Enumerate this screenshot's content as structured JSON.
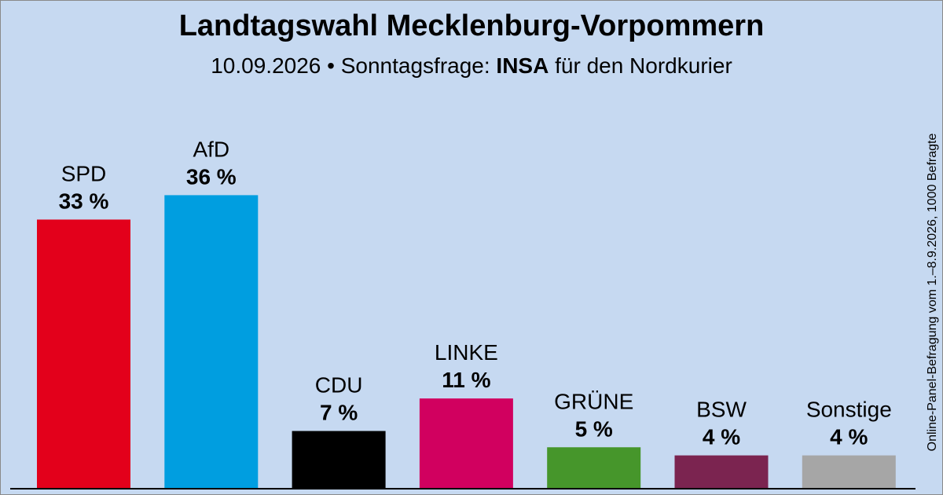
{
  "header": {
    "title": "Landtagswahl Mecklenburg-Vorpommern",
    "subtitle_prefix": "10.09.2026 • Sonntagsfrage: ",
    "subtitle_institute": "INSA",
    "subtitle_suffix": " für den Nordkurier"
  },
  "source_note": "Online-Panel-Befragung vom 1.–8.9.2026, 1000 Befragte",
  "chart_data": {
    "type": "bar",
    "categories": [
      "SPD",
      "AfD",
      "CDU",
      "LINKE",
      "GRÜNE",
      "BSW",
      "Sonstige"
    ],
    "values": [
      33,
      36,
      7,
      11,
      5,
      4,
      4
    ],
    "value_labels": [
      "33 %",
      "36 %",
      "7 %",
      "11 %",
      "5 %",
      "4 %",
      "4 %"
    ],
    "colors": [
      "#e3001b",
      "#009ee0",
      "#000000",
      "#d1005f",
      "#46962b",
      "#7b2450",
      "#a6a6a6"
    ],
    "title": "Landtagswahl Mecklenburg-Vorpommern",
    "xlabel": "",
    "ylabel": "",
    "ylim": [
      0,
      40
    ],
    "grid": false,
    "legend": "none"
  }
}
